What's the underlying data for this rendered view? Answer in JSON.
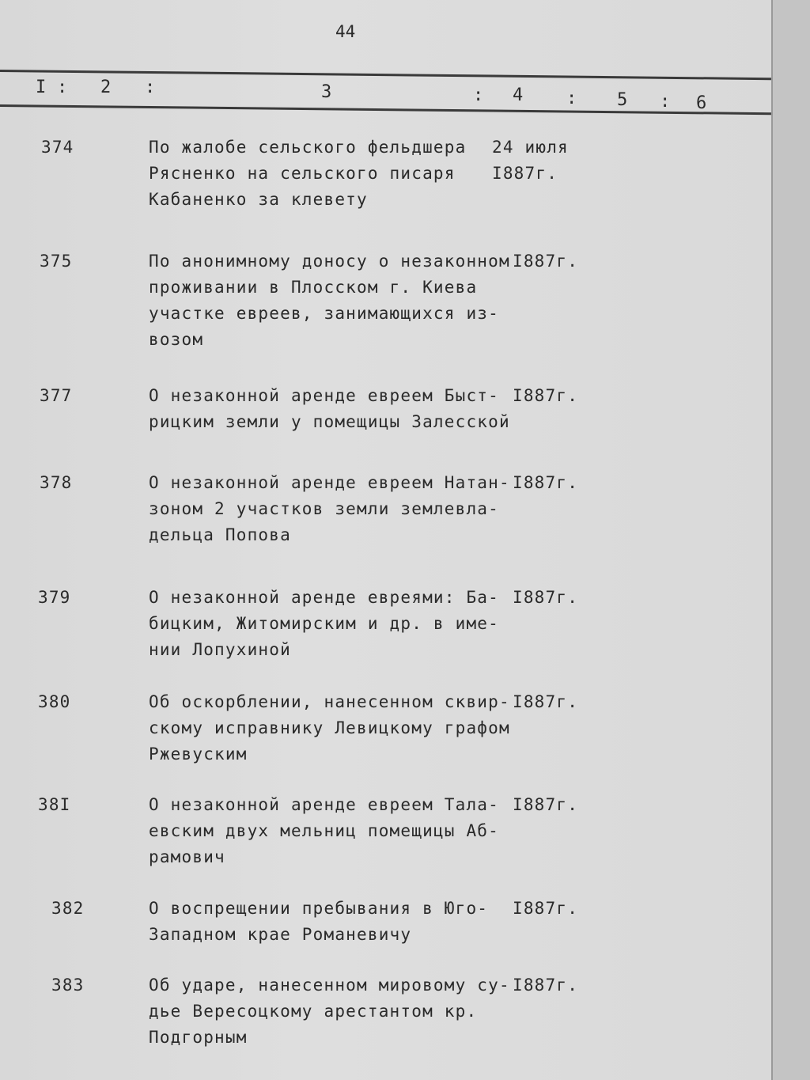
{
  "page_number": "44",
  "columns": [
    "I",
    "2",
    "3",
    "4",
    "5",
    "6"
  ],
  "entries": [
    {
      "num": "374",
      "lines": [
        "По жалобе сельского фельдшера",
        "Рясненко на сельского писаря",
        "Кабаненко за клевету"
      ],
      "date": [
        "24 июля",
        "I887г."
      ]
    },
    {
      "num": "375",
      "lines": [
        "По анонимному доносу о незаконном",
        "проживании в Плосском г. Киева",
        "участке евреев, занимающихся из-",
        "возом"
      ],
      "date": [
        "I887г."
      ]
    },
    {
      "num": "377",
      "lines": [
        "О незаконной аренде евреем Быст-",
        "рицким земли у помещицы Залесской"
      ],
      "date": [
        "I887г."
      ]
    },
    {
      "num": "378",
      "lines": [
        "О незаконной аренде евреем Натан-",
        "зоном 2 участков земли землевла-",
        "дельца Попова"
      ],
      "date": [
        "I887г."
      ]
    },
    {
      "num": "379",
      "lines": [
        "О незаконной аренде евреями: Ба-",
        "бицким, Житомирским и др. в име-",
        "нии Лопухиной"
      ],
      "date": [
        "I887г."
      ]
    },
    {
      "num": "380",
      "lines": [
        "Об оскорблении, нанесенном сквир-",
        "скому исправнику Левицкому графом",
        "Ржевуским"
      ],
      "date": [
        "I887г."
      ]
    },
    {
      "num": "38I",
      "lines": [
        "О незаконной аренде евреем Тала-",
        "евским двух мельниц помещицы Аб-",
        "рамович"
      ],
      "date": [
        "I887г."
      ]
    },
    {
      "num": "382",
      "lines": [
        "О воспрещении пребывания в Юго-",
        "Западном крае Романевичу"
      ],
      "date": [
        "I887г."
      ]
    },
    {
      "num": "383",
      "lines": [
        "Об ударе, нанесенном мировому су-",
        "дье Вересоцкому арестантом кр.",
        "Подгорным"
      ],
      "date": [
        "I887г."
      ]
    }
  ]
}
